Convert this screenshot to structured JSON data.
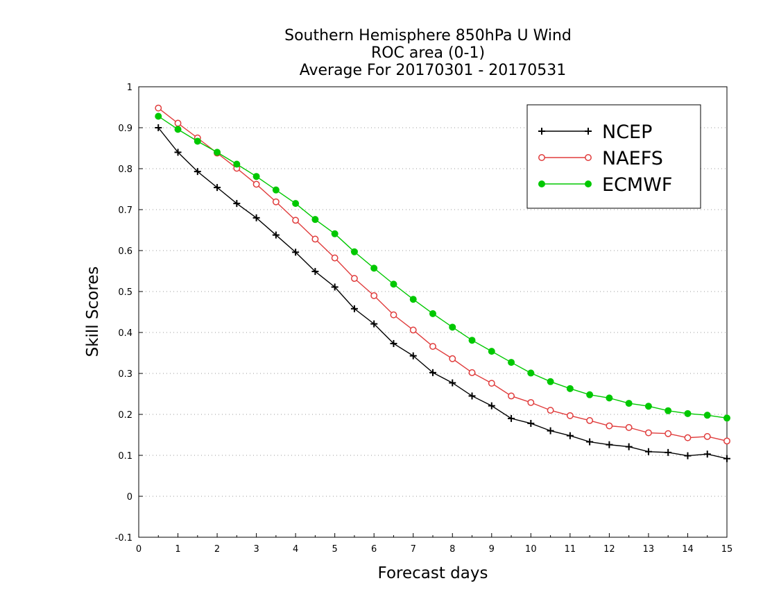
{
  "chart_data": {
    "type": "line",
    "title": [
      "Southern Hemisphere 850hPa U Wind",
      "ROC area (0-1)",
      "Average For 20170301 - 20170531"
    ],
    "xlabel": "Forecast days",
    "ylabel": "Skill Scores",
    "xlim": [
      0,
      15
    ],
    "ylim": [
      -0.1,
      1
    ],
    "xticks": [
      0,
      1,
      2,
      3,
      4,
      5,
      6,
      7,
      8,
      9,
      10,
      11,
      12,
      13,
      14,
      15
    ],
    "yticks": [
      -0.1,
      0,
      0.1,
      0.2,
      0.3,
      0.4,
      0.5,
      0.6,
      0.7,
      0.8,
      0.9,
      1
    ],
    "ytick_labels": [
      "-0.1",
      "0",
      "0.1",
      "0.2",
      "0.3",
      "0.4",
      "0.5",
      "0.6",
      "0.7",
      "0.8",
      "0.9",
      "1"
    ],
    "grid": "horizontal-dotted",
    "legend_position": "top-right",
    "x": [
      0.5,
      1,
      1.5,
      2,
      2.5,
      3,
      3.5,
      4,
      4.5,
      5,
      5.5,
      6,
      6.5,
      7,
      7.5,
      8,
      8.5,
      9,
      9.5,
      10,
      10.5,
      11,
      11.5,
      12,
      12.5,
      13,
      13.5,
      14,
      14.5,
      15
    ],
    "series": [
      {
        "name": "NCEP",
        "color": "#000000",
        "marker": "plus",
        "values": [
          0.9,
          0.84,
          0.793,
          0.754,
          0.715,
          0.68,
          0.638,
          0.596,
          0.549,
          0.511,
          0.458,
          0.421,
          0.373,
          0.343,
          0.302,
          0.277,
          0.245,
          0.221,
          0.19,
          0.178,
          0.16,
          0.148,
          0.133,
          0.126,
          0.121,
          0.109,
          0.107,
          0.099,
          0.103,
          0.092
        ]
      },
      {
        "name": "NAEFS",
        "color": "#e03c3c",
        "marker": "open-circle",
        "values": [
          0.948,
          0.911,
          0.875,
          0.838,
          0.801,
          0.762,
          0.719,
          0.674,
          0.628,
          0.582,
          0.532,
          0.49,
          0.443,
          0.406,
          0.366,
          0.336,
          0.302,
          0.276,
          0.245,
          0.229,
          0.21,
          0.197,
          0.185,
          0.172,
          0.168,
          0.155,
          0.153,
          0.143,
          0.146,
          0.135
        ]
      },
      {
        "name": "ECMWF",
        "color": "#00c800",
        "marker": "filled-circle",
        "values": [
          0.928,
          0.896,
          0.867,
          0.84,
          0.811,
          0.781,
          0.748,
          0.715,
          0.676,
          0.641,
          0.597,
          0.557,
          0.518,
          0.481,
          0.446,
          0.413,
          0.381,
          0.354,
          0.327,
          0.301,
          0.28,
          0.263,
          0.248,
          0.24,
          0.227,
          0.22,
          0.209,
          0.202,
          0.198,
          0.191
        ]
      }
    ]
  }
}
